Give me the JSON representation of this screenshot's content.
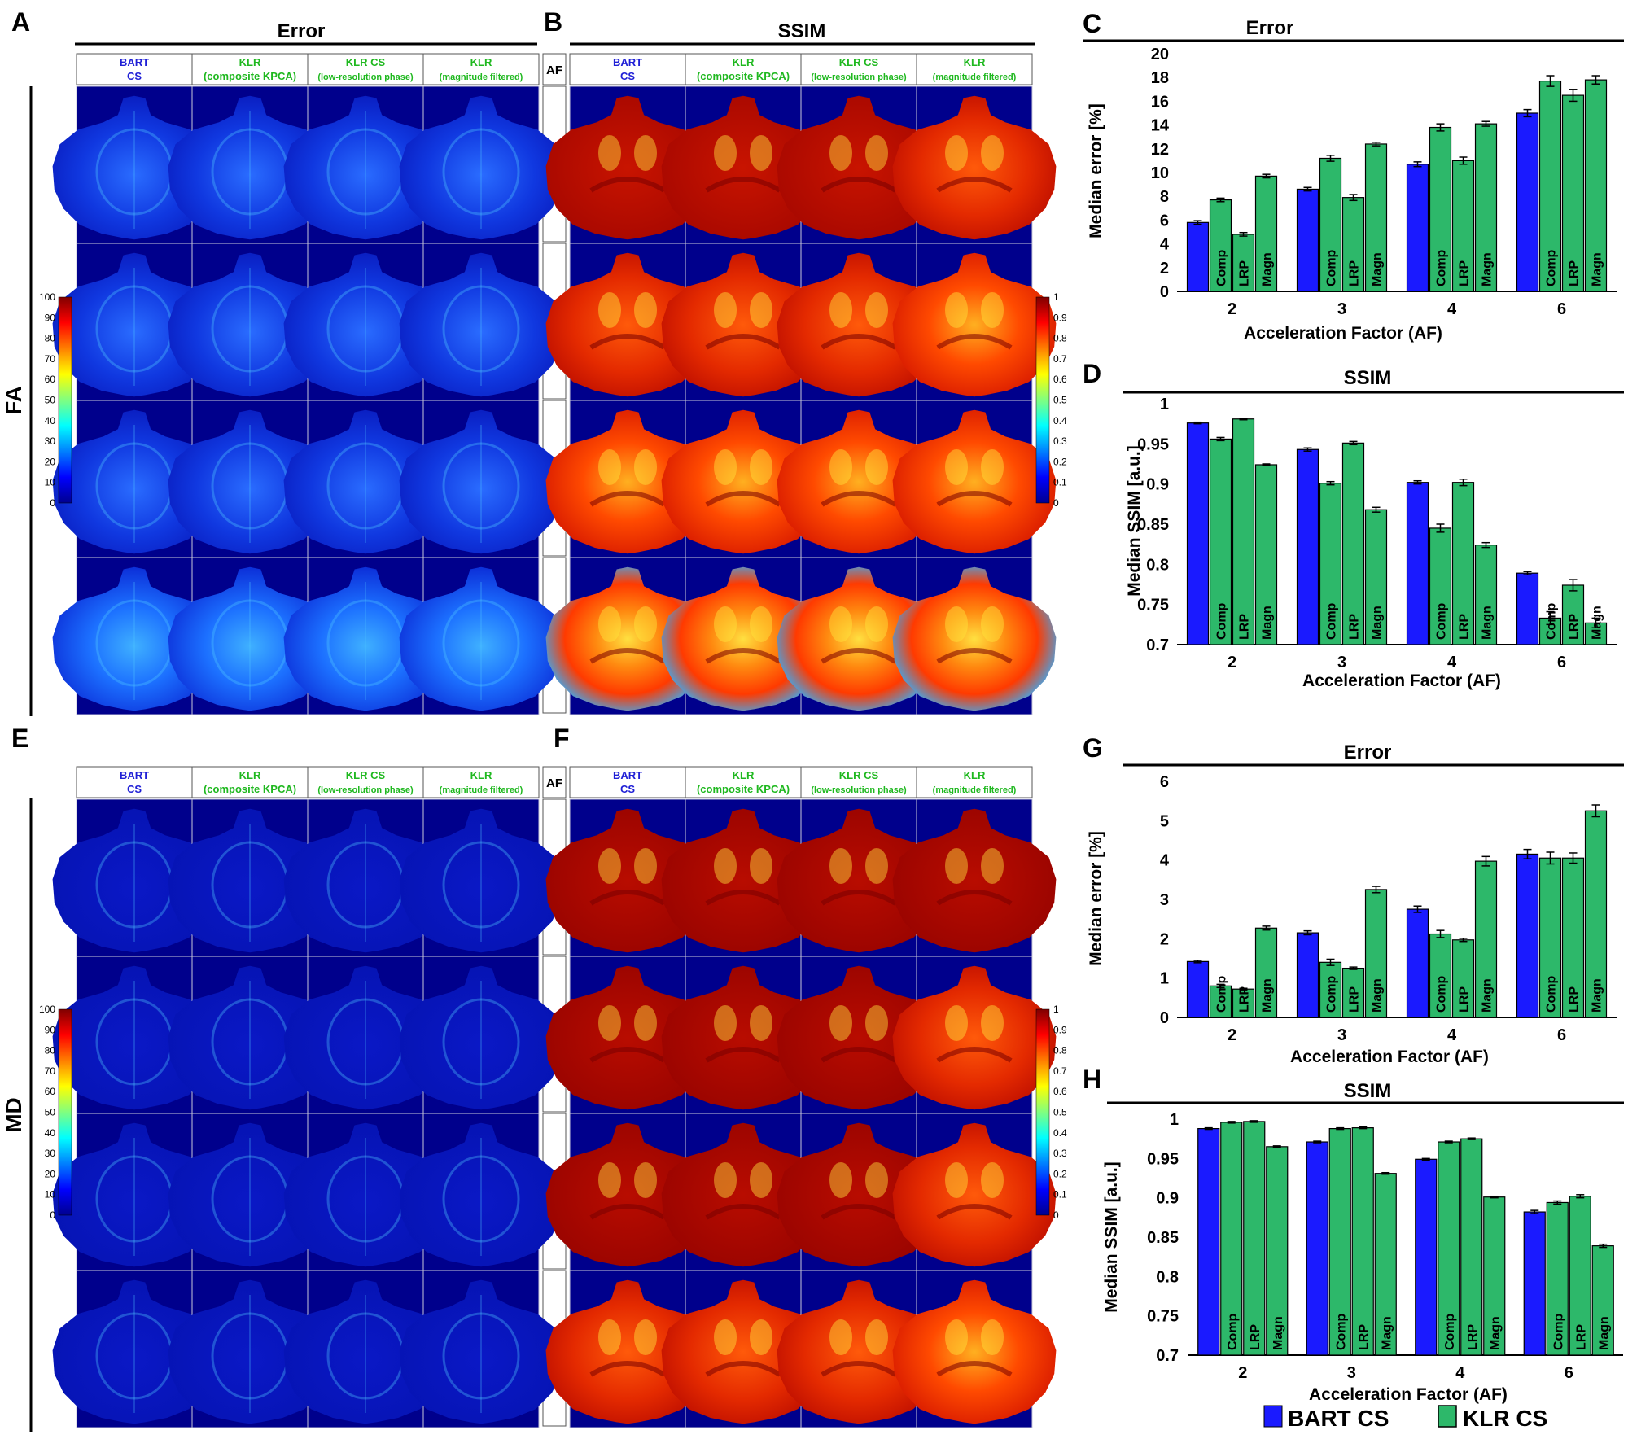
{
  "panels": {
    "A": {
      "letter": "A",
      "title": "Error"
    },
    "B": {
      "letter": "B",
      "title": "SSIM"
    },
    "E": {
      "letter": "E"
    },
    "F": {
      "letter": "F"
    }
  },
  "row_labels": {
    "fa": "FA",
    "md": "MD"
  },
  "column_headers": [
    {
      "line1": "BART",
      "line2": "CS",
      "color": "#1f1fd6"
    },
    {
      "line1": "KLR",
      "line2": "(composite KPCA)",
      "color": "#1fb81f"
    },
    {
      "line1": "KLR CS",
      "line2": "(low-resolution phase)",
      "color": "#1fb81f"
    },
    {
      "line1": "KLR",
      "line2": "(magnitude filtered)",
      "color": "#1fb81f"
    }
  ],
  "af_header": "AF",
  "af_levels": [
    "2",
    "3",
    "4",
    "6"
  ],
  "error_colorbar_ticks": [
    "100",
    "90",
    "80",
    "70",
    "60",
    "50",
    "40",
    "30",
    "20",
    "10",
    "0"
  ],
  "ssim_colorbar_ticks": [
    "1",
    "0.9",
    "0.8",
    "0.7",
    "0.6",
    "0.5",
    "0.4",
    "0.3",
    "0.2",
    "0.1",
    "0"
  ],
  "legend": {
    "bart": "BART CS",
    "klr": "KLR CS",
    "bart_color": "#1a1aff",
    "klr_color": "#2db86a"
  },
  "chart_data": [
    {
      "panel": "C",
      "type": "bar",
      "title": "Error",
      "xlabel": "Acceleration Factor (AF)",
      "ylabel": "Median error [%]",
      "categories": [
        "2",
        "3",
        "4",
        "6"
      ],
      "ylim": [
        0,
        20
      ],
      "yticks": [
        "0",
        "2",
        "4",
        "6",
        "8",
        "10",
        "12",
        "14",
        "16",
        "18",
        "20"
      ],
      "bar_labels": [
        "",
        "Comp",
        "LRP",
        "Magn"
      ],
      "series": [
        {
          "name": "BART CS",
          "values": [
            5.8,
            8.6,
            10.7,
            15.0
          ]
        },
        {
          "name": "Comp",
          "values": [
            7.7,
            11.2,
            13.8,
            17.7
          ]
        },
        {
          "name": "LRP",
          "values": [
            4.8,
            7.9,
            11.0,
            16.5
          ]
        },
        {
          "name": "Magn",
          "values": [
            9.7,
            12.4,
            14.1,
            17.8
          ]
        }
      ],
      "errors": [
        [
          0.15,
          0.15,
          0.2,
          0.3
        ],
        [
          0.15,
          0.25,
          0.3,
          0.45
        ],
        [
          0.15,
          0.25,
          0.3,
          0.5
        ],
        [
          0.15,
          0.15,
          0.2,
          0.35
        ]
      ]
    },
    {
      "panel": "D",
      "type": "bar",
      "title": "SSIM",
      "xlabel": "Acceleration Factor (AF)",
      "ylabel": "Median SSIM [a.u.]",
      "categories": [
        "2",
        "3",
        "4",
        "6"
      ],
      "ylim": [
        0.7,
        1.0
      ],
      "yticks": [
        "0.7",
        "0.75",
        "0.8",
        "0.85",
        "0.9",
        "0.95",
        "1"
      ],
      "bar_labels": [
        "",
        "Comp",
        "LRP",
        "Magn"
      ],
      "series": [
        {
          "name": "BART CS",
          "values": [
            0.976,
            0.943,
            0.902,
            0.789
          ]
        },
        {
          "name": "Comp",
          "values": [
            0.956,
            0.901,
            0.845,
            0.733
          ]
        },
        {
          "name": "LRP",
          "values": [
            0.981,
            0.951,
            0.902,
            0.774
          ]
        },
        {
          "name": "Magn",
          "values": [
            0.924,
            0.868,
            0.824,
            0.727
          ]
        }
      ],
      "errors": [
        [
          0.001,
          0.002,
          0.002,
          0.002
        ],
        [
          0.002,
          0.002,
          0.005,
          0.008
        ],
        [
          0.001,
          0.002,
          0.004,
          0.007
        ],
        [
          0.001,
          0.003,
          0.003,
          0.006
        ]
      ]
    },
    {
      "panel": "G",
      "type": "bar",
      "title": "Error",
      "xlabel": "Acceleration Factor (AF)",
      "ylabel": "Median error [%]",
      "categories": [
        "2",
        "3",
        "4",
        "6"
      ],
      "ylim": [
        0,
        6
      ],
      "yticks": [
        "0",
        "1",
        "2",
        "3",
        "4",
        "5",
        "6"
      ],
      "bar_labels": [
        "",
        "Comp",
        "LRP",
        "Magn"
      ],
      "series": [
        {
          "name": "BART CS",
          "values": [
            1.42,
            2.15,
            2.75,
            4.15
          ]
        },
        {
          "name": "Comp",
          "values": [
            0.8,
            1.4,
            2.12,
            4.05
          ]
        },
        {
          "name": "LRP",
          "values": [
            0.72,
            1.25,
            1.97,
            4.05
          ]
        },
        {
          "name": "Magn",
          "values": [
            2.27,
            3.25,
            3.97,
            5.25
          ]
        }
      ],
      "errors": [
        [
          0.03,
          0.05,
          0.08,
          0.12
        ],
        [
          0.04,
          0.08,
          0.09,
          0.15
        ],
        [
          0.02,
          0.03,
          0.04,
          0.13
        ],
        [
          0.05,
          0.08,
          0.12,
          0.15
        ]
      ]
    },
    {
      "panel": "H",
      "type": "bar",
      "title": "SSIM",
      "xlabel": "Acceleration Factor (AF)",
      "ylabel": "Median SSIM [a.u.]",
      "categories": [
        "2",
        "3",
        "4",
        "6"
      ],
      "ylim": [
        0.7,
        1.0
      ],
      "yticks": [
        "0.7",
        "0.75",
        "0.8",
        "0.85",
        "0.9",
        "0.95",
        "1"
      ],
      "bar_labels": [
        "",
        "Comp",
        "LRP",
        "Magn"
      ],
      "series": [
        {
          "name": "BART CS",
          "values": [
            0.988,
            0.971,
            0.949,
            0.882
          ]
        },
        {
          "name": "Comp",
          "values": [
            0.996,
            0.988,
            0.971,
            0.894
          ]
        },
        {
          "name": "LRP",
          "values": [
            0.997,
            0.989,
            0.975,
            0.902
          ]
        },
        {
          "name": "Magn",
          "values": [
            0.965,
            0.931,
            0.901,
            0.839
          ]
        }
      ],
      "errors": [
        [
          0.001,
          0.001,
          0.001,
          0.002
        ],
        [
          0.001,
          0.001,
          0.001,
          0.002
        ],
        [
          0.001,
          0.001,
          0.001,
          0.002
        ],
        [
          0.001,
          0.001,
          0.001,
          0.002
        ]
      ]
    }
  ]
}
